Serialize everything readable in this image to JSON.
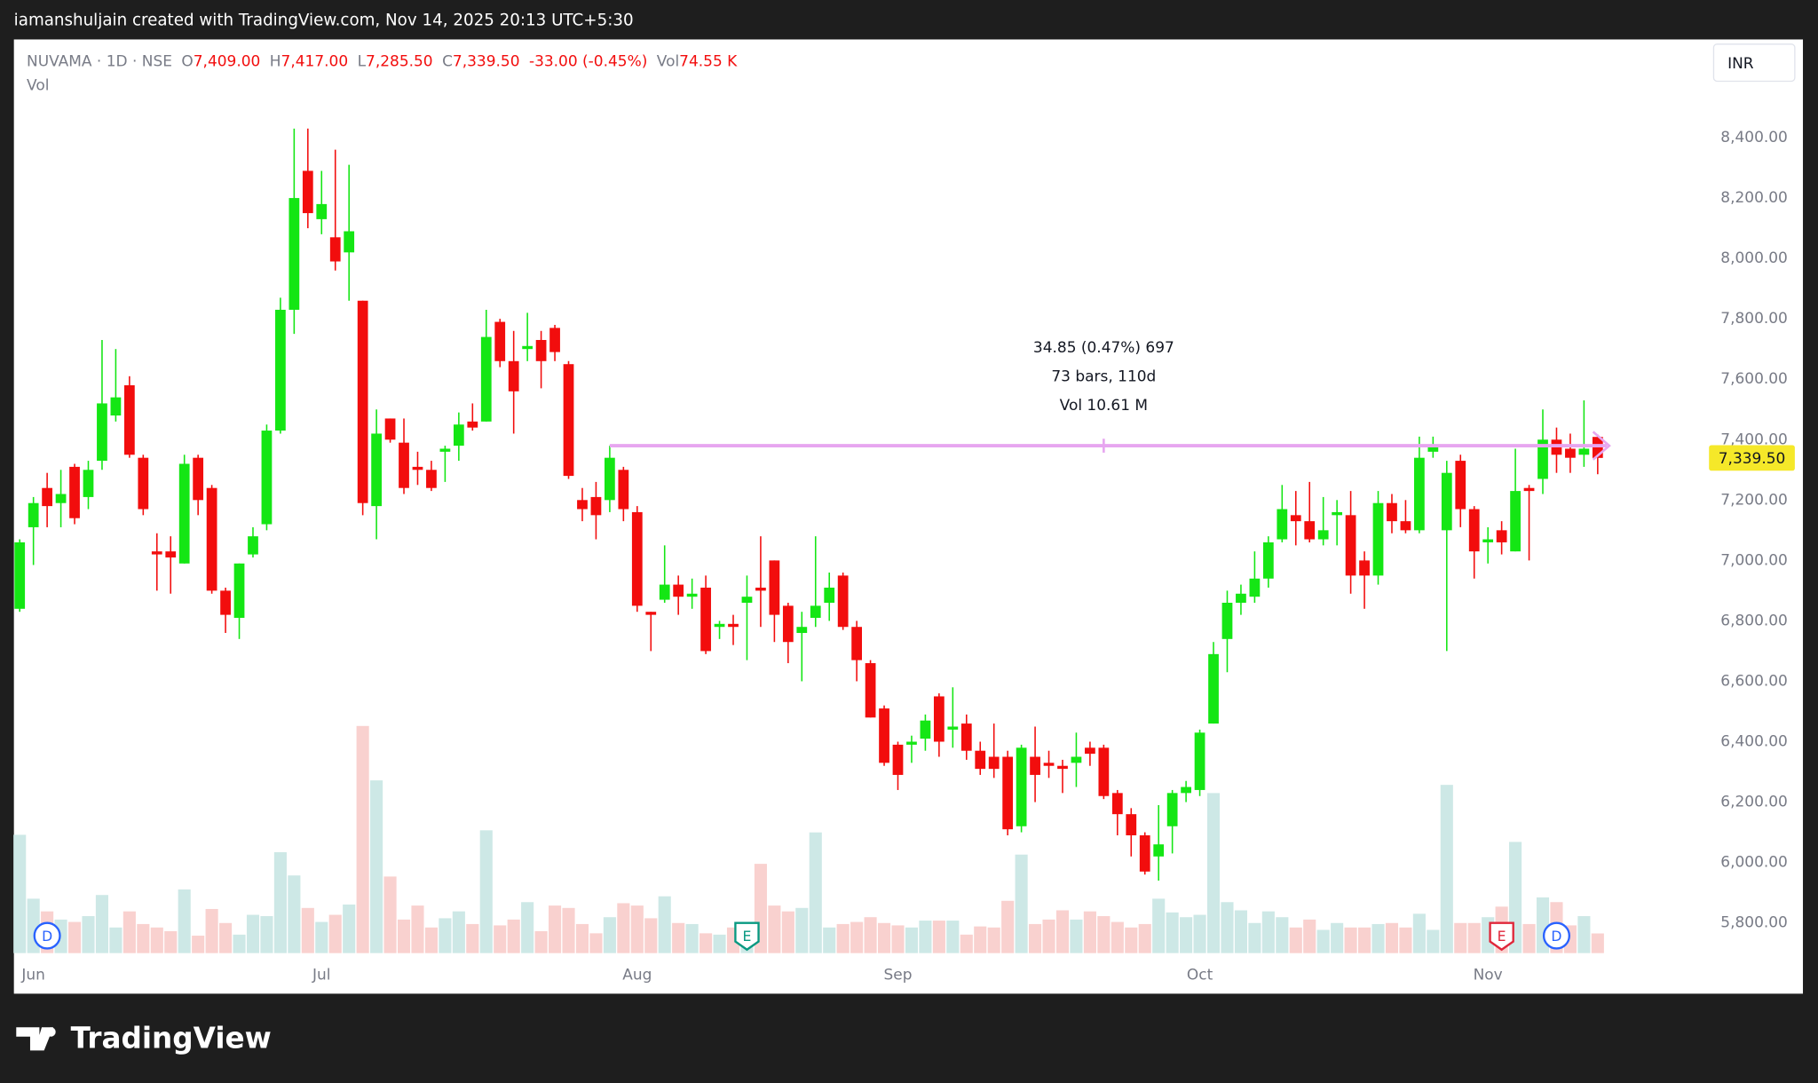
{
  "header": "iamanshuljain created with TradingView.com, Nov 14, 2025 20:13 UTC+5:30",
  "footer": "TradingView",
  "chart_data": {
    "type": "candlestick",
    "legend": {
      "symbol": "NUVAMA · 1D · NSE",
      "fields": [
        {
          "key": "O",
          "value": "7,409.00"
        },
        {
          "key": "H",
          "value": "7,417.00"
        },
        {
          "key": "L",
          "value": "7,285.50"
        },
        {
          "key": "C",
          "value": "7,339.50"
        }
      ],
      "change": "-33.00 (-0.45%)",
      "volume": {
        "key": "Vol",
        "value": "74.55 K"
      }
    },
    "currency": "INR",
    "categories": [
      null,
      "Jun",
      null,
      null,
      null,
      null,
      null,
      null,
      null,
      null,
      null,
      null,
      null,
      null,
      null,
      null,
      null,
      null,
      null,
      null,
      null,
      null,
      "Jul",
      null,
      null,
      null,
      null,
      null,
      null,
      null,
      null,
      null,
      null,
      null,
      null,
      null,
      null,
      null,
      null,
      null,
      null,
      null,
      null,
      null,
      null,
      "Aug",
      null,
      null,
      null,
      null,
      null,
      null,
      null,
      null,
      null,
      null,
      null,
      null,
      null,
      null,
      null,
      null,
      null,
      null,
      "Sep",
      null,
      null,
      null,
      null,
      null,
      null,
      null,
      null,
      null,
      null,
      null,
      null,
      null,
      null,
      null,
      null,
      null,
      null,
      null,
      null,
      null,
      "Oct",
      null,
      null,
      null,
      null,
      null,
      null,
      null,
      null,
      null,
      null,
      null,
      null,
      null,
      null,
      null,
      null,
      null,
      null,
      null,
      null,
      "Nov",
      null,
      null,
      null,
      null,
      null,
      null,
      null,
      null
    ],
    "series": {
      "up_color": "#14e614",
      "down_color": "#f20d0d",
      "open": [
        6840,
        7110,
        7240,
        7190,
        7310,
        7210,
        7330,
        7480,
        7580,
        7340,
        7030,
        7030,
        6990,
        7340,
        7240,
        6900,
        6810,
        7020,
        7120,
        7430,
        7830,
        8290,
        8130,
        8070,
        8020,
        7860,
        7180,
        7470,
        7390,
        7310,
        7300,
        7360,
        7380,
        7460,
        7460,
        7790,
        7660,
        7700,
        7730,
        7770,
        7650,
        7200,
        7210,
        7200,
        7300,
        7160,
        6830,
        6870,
        6920,
        6880,
        6910,
        6780,
        6790,
        6860,
        6910,
        7000,
        6850,
        6760,
        6810,
        6860,
        6950,
        6780,
        6660,
        6510,
        6390,
        6390,
        6410,
        6550,
        6440,
        6460,
        6370,
        6350,
        6350,
        6120,
        6350,
        6330,
        6320,
        6330,
        6380,
        6380,
        6230,
        6160,
        6090,
        6020,
        6120,
        6230,
        6240,
        6460,
        6740,
        6860,
        6880,
        6940,
        7070,
        7150,
        7130,
        7070,
        7150,
        7150,
        7000,
        6950,
        7190,
        7130,
        7100,
        7360,
        7100,
        7330,
        7170,
        7060,
        7100,
        7030,
        7240,
        7270,
        7400,
        7370,
        7350,
        7409
      ],
      "high": [
        7070,
        7210,
        7290,
        7300,
        7320,
        7330,
        7730,
        7700,
        7610,
        7350,
        7090,
        7080,
        7350,
        7350,
        7250,
        6910,
        6990,
        7110,
        7450,
        7870,
        8430,
        8430,
        8290,
        8360,
        8310,
        7860,
        7500,
        7470,
        7470,
        7360,
        7330,
        7380,
        7490,
        7520,
        7830,
        7800,
        7760,
        7820,
        7760,
        7780,
        7660,
        7240,
        7260,
        7380,
        7310,
        7180,
        6830,
        7050,
        6950,
        6940,
        6950,
        6800,
        6820,
        6950,
        7080,
        7000,
        6860,
        6830,
        7080,
        6960,
        6960,
        6800,
        6670,
        6520,
        6400,
        6420,
        6490,
        6560,
        6580,
        6490,
        6400,
        6460,
        6370,
        6390,
        6450,
        6370,
        6340,
        6430,
        6400,
        6390,
        6240,
        6180,
        6100,
        6190,
        6240,
        6270,
        6440,
        6730,
        6900,
        6920,
        7030,
        7080,
        7250,
        7230,
        7260,
        7210,
        7200,
        7230,
        7030,
        7230,
        7220,
        7200,
        7410,
        7410,
        7330,
        7350,
        7180,
        7110,
        7130,
        7370,
        7250,
        7500,
        7440,
        7420,
        7530,
        7417
      ],
      "low": [
        6830,
        6985,
        7110,
        7110,
        7120,
        7170,
        7300,
        7460,
        7340,
        7150,
        6900,
        6890,
        6990,
        7150,
        6890,
        6760,
        6740,
        7010,
        7100,
        7420,
        7750,
        8100,
        8080,
        7960,
        7860,
        7150,
        7070,
        7390,
        7220,
        7250,
        7230,
        7260,
        7330,
        7430,
        7460,
        7640,
        7420,
        7660,
        7570,
        7660,
        7270,
        7130,
        7070,
        7160,
        7130,
        6830,
        6700,
        6860,
        6820,
        6840,
        6690,
        6740,
        6720,
        6670,
        6780,
        6730,
        6660,
        6600,
        6780,
        6800,
        6770,
        6600,
        6480,
        6320,
        6240,
        6330,
        6370,
        6350,
        6380,
        6340,
        6290,
        6280,
        6090,
        6100,
        6200,
        6280,
        6230,
        6250,
        6320,
        6210,
        6090,
        6020,
        5960,
        5940,
        6030,
        6200,
        6220,
        6460,
        6630,
        6820,
        6860,
        6910,
        7060,
        7050,
        7060,
        7050,
        7050,
        6890,
        6840,
        6920,
        7090,
        7090,
        7090,
        7340,
        6700,
        7110,
        6940,
        6990,
        7020,
        7030,
        7000,
        7220,
        7290,
        7290,
        7310,
        7285.5
      ],
      "close": [
        7060,
        7190,
        7180,
        7220,
        7140,
        7300,
        7520,
        7540,
        7350,
        7170,
        7020,
        7010,
        7320,
        7200,
        6900,
        6820,
        6990,
        7080,
        7430,
        7830,
        8200,
        8150,
        8180,
        7990,
        8090,
        7190,
        7420,
        7400,
        7240,
        7300,
        7240,
        7370,
        7450,
        7440,
        7740,
        7660,
        7560,
        7710,
        7660,
        7690,
        7280,
        7170,
        7150,
        7340,
        7170,
        6850,
        6820,
        6920,
        6880,
        6890,
        6700,
        6790,
        6780,
        6880,
        6900,
        6820,
        6730,
        6780,
        6850,
        6910,
        6780,
        6670,
        6480,
        6330,
        6290,
        6400,
        6470,
        6400,
        6450,
        6370,
        6310,
        6310,
        6110,
        6380,
        6290,
        6320,
        6310,
        6350,
        6360,
        6220,
        6160,
        6090,
        5970,
        6060,
        6230,
        6250,
        6430,
        6690,
        6860,
        6890,
        6940,
        7060,
        7170,
        7130,
        7070,
        7100,
        7160,
        6950,
        6950,
        7190,
        7130,
        7100,
        7340,
        7380,
        7290,
        7170,
        7030,
        7070,
        7060,
        7230,
        7230,
        7400,
        7350,
        7340,
        7370,
        7339.5
      ]
    },
    "volume": {
      "name": "Vol",
      "axis": "y2",
      "up_color": "#cde8e6",
      "down_color": "#f9d1cf",
      "values": [
        448,
        206,
        158,
        127,
        118,
        140,
        220,
        97,
        158,
        110,
        97,
        83,
        241,
        66,
        167,
        114,
        70,
        145,
        140,
        382,
        294,
        171,
        118,
        145,
        184,
        860,
        654,
        290,
        127,
        180,
        97,
        132,
        158,
        110,
        465,
        105,
        127,
        193,
        83,
        180,
        171,
        110,
        75,
        136,
        189,
        180,
        132,
        215,
        114,
        110,
        75,
        70,
        97,
        97,
        338,
        180,
        158,
        171,
        457,
        97,
        110,
        118,
        136,
        114,
        105,
        97,
        123,
        123,
        123,
        70,
        101,
        97,
        198,
        373,
        110,
        127,
        162,
        127,
        158,
        140,
        118,
        97,
        110,
        206,
        154,
        136,
        145,
        606,
        193,
        162,
        114,
        158,
        136,
        97,
        127,
        88,
        114,
        97,
        97,
        110,
        114,
        97,
        149,
        88,
        637,
        114,
        114,
        136,
        176,
        421,
        110,
        211,
        193,
        105,
        140,
        74.55
      ]
    },
    "ylim": [
      5700,
      8725
    ],
    "y2lim": [
      0,
      900
    ],
    "yticks": [
      {
        "value": 8400,
        "label": "8,400.00"
      },
      {
        "value": 8200,
        "label": "8,200.00"
      },
      {
        "value": 8000,
        "label": "8,000.00"
      },
      {
        "value": 7800,
        "label": "7,800.00"
      },
      {
        "value": 7600,
        "label": "7,600.00"
      },
      {
        "value": 7400,
        "label": "7,400.00"
      },
      {
        "value": 7200,
        "label": "7,200.00"
      },
      {
        "value": 7000,
        "label": "7,000.00"
      },
      {
        "value": 6800,
        "label": "6,800.00"
      },
      {
        "value": 6600,
        "label": "6,600.00"
      },
      {
        "value": 6400,
        "label": "6,400.00"
      },
      {
        "value": 6200,
        "label": "6,200.00"
      },
      {
        "value": 6000,
        "label": "6,000.00"
      },
      {
        "value": 5800,
        "label": "5,800.00"
      }
    ],
    "grid": false,
    "last_price": {
      "value": 7339.5,
      "label": "7,339.50",
      "color": "#f5e829"
    },
    "measure": {
      "from": 43,
      "to": 115,
      "price": 7380,
      "color": "#e7a6f0",
      "lines": [
        "34.85 (0.47%) 697",
        "73 bars, 110d",
        "Vol 10.61 M"
      ]
    },
    "events": [
      {
        "label": "D",
        "index": 2,
        "color": "#2962ff"
      },
      {
        "label": "E",
        "index": 53,
        "color": "#089981"
      },
      {
        "label": "E",
        "index": 108,
        "color": "#e0273a"
      },
      {
        "label": "D",
        "index": 112,
        "color": "#2962ff"
      }
    ]
  }
}
